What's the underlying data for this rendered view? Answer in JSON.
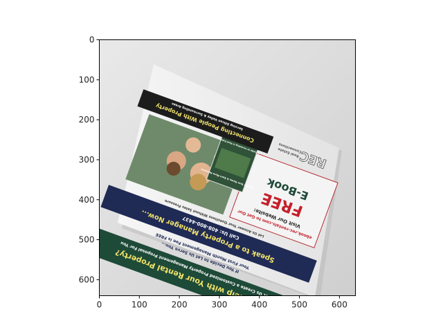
{
  "axes": {
    "x_ticks": [
      "0",
      "100",
      "200",
      "300",
      "400",
      "500",
      "600"
    ],
    "y_ticks": [
      "0",
      "100",
      "200",
      "300",
      "400",
      "500",
      "600"
    ],
    "x_range": [
      0,
      640
    ],
    "y_range": [
      640,
      0
    ],
    "y_inverted": true
  },
  "photo": {
    "subject": "rotated real-estate flyer lying on a white surface",
    "flyer": {
      "logo": "REC",
      "logo_sub_1": "Real Estate",
      "logo_sub_2": "Connections",
      "offer_1": "FREE",
      "offer_2": "E-Book",
      "book_line": "A Guide to Investing in Real Estate",
      "book_caption": "Protect Your Home & Earn More Revenue",
      "visit_label": "Visit Our Website:",
      "website": "ebook.rec-rentals.com to Get Our",
      "phone": "Call Us: 408-800-4437",
      "speak": "Speak to a Property Manager Now...",
      "speak_sub": "Let Us Answer Your Questions Without Sales Pressure",
      "first_month": "Your First Month Management Fee is FREE",
      "decide": "If You Decide to Let Us Serve You...",
      "tagline": "Connecting People With Property",
      "serving": "Serving Silicon Valley & Surrounding Areas",
      "need_help": "Need Help with Your Rental Property?",
      "proposal": "Let Us Create a Customized Property Management Proposal For You"
    },
    "colors": {
      "background": "#dcdcdc",
      "flyer_white": "#f2f2f2",
      "navy": "#1f2a55",
      "dark_green": "#1e4a38",
      "black_band": "#1c1c1c",
      "yellow_text": "#f1e36a",
      "red_text": "#c5202b"
    }
  }
}
